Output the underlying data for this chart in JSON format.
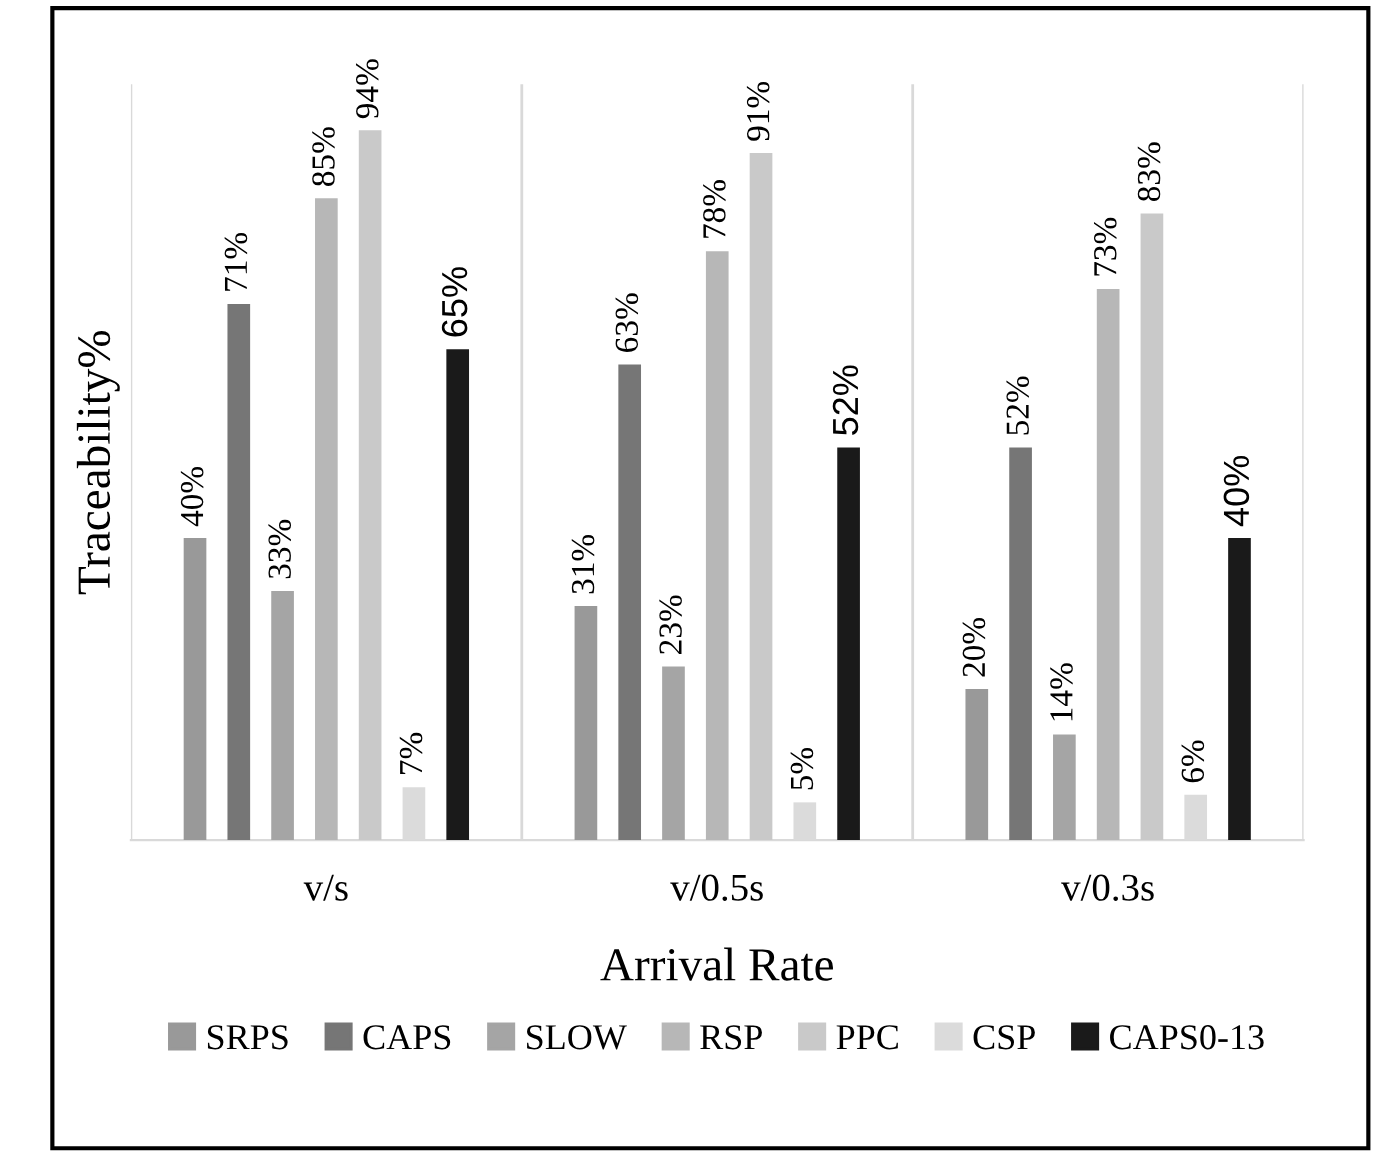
{
  "chart_data": {
    "type": "bar",
    "xlabel": "Arrival Rate",
    "ylabel": "Traceability%",
    "categories": [
      "v/s",
      "v/0.5s",
      "v/0.3s"
    ],
    "series": [
      {
        "name": "SRPS",
        "color": "#999999",
        "values": [
          40,
          31,
          20
        ],
        "value_labels": [
          "40%",
          "31%",
          "20%"
        ]
      },
      {
        "name": "CAPS",
        "color": "#767676",
        "values": [
          71,
          63,
          52
        ],
        "value_labels": [
          "71%",
          "63%",
          "52%"
        ]
      },
      {
        "name": "SLOW",
        "color": "#a5a5a5",
        "values": [
          33,
          23,
          14
        ],
        "value_labels": [
          "33%",
          "23%",
          "14%"
        ]
      },
      {
        "name": "RSP",
        "color": "#b7b7b7",
        "values": [
          85,
          78,
          73
        ],
        "value_labels": [
          "85%",
          "78%",
          "73%"
        ]
      },
      {
        "name": "PPC",
        "color": "#c9c9c9",
        "values": [
          94,
          91,
          83
        ],
        "value_labels": [
          "94%",
          "91%",
          "83%"
        ]
      },
      {
        "name": "CSP",
        "color": "#dbdbdb",
        "values": [
          7,
          5,
          6
        ],
        "value_labels": [
          "7%",
          "5%",
          "6%"
        ]
      },
      {
        "name": "CAPS0-13",
        "color": "#1a1a1a",
        "values": [
          65,
          52,
          40
        ],
        "value_labels": [
          "65%",
          "52%",
          "40%"
        ]
      }
    ],
    "legend": "bottom",
    "grid": "x"
  }
}
